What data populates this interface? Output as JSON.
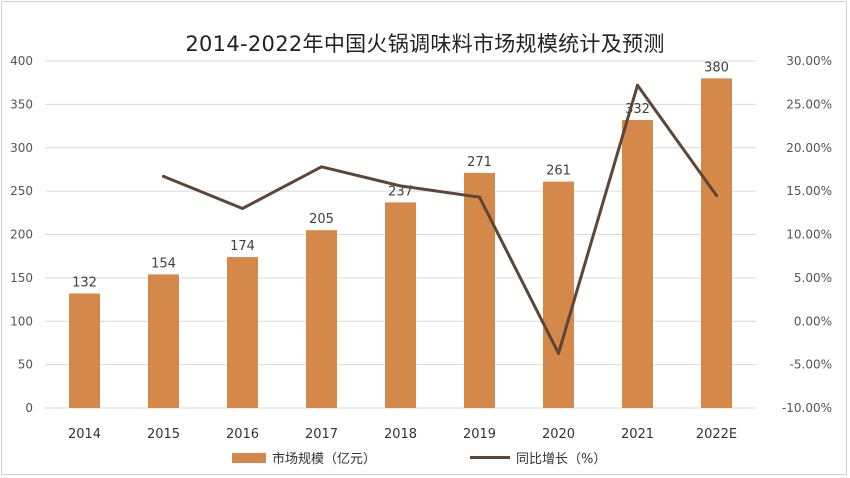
{
  "chart_data": {
    "type": "bar",
    "title": "2014-2022年中国火锅调味料市场规模统计及预测",
    "categories": [
      "2014",
      "2015",
      "2016",
      "2017",
      "2018",
      "2019",
      "2020",
      "2021",
      "2022E"
    ],
    "series": [
      {
        "name": "市场规模（亿元）",
        "type": "bar",
        "axis": "left",
        "color": "#D4894A",
        "values": [
          132,
          154,
          174,
          205,
          237,
          271,
          261,
          332,
          380
        ]
      },
      {
        "name": "同比增长（%）",
        "type": "line",
        "axis": "right",
        "color": "#5E4636",
        "values": [
          null,
          16.7,
          13.0,
          17.8,
          15.6,
          14.3,
          -3.7,
          27.2,
          14.5
        ]
      }
    ],
    "left_axis": {
      "ylim": [
        0,
        400
      ],
      "ticks": [
        "0",
        "50",
        "100",
        "150",
        "200",
        "250",
        "300",
        "350",
        "400"
      ]
    },
    "right_axis": {
      "ylim": [
        -10,
        30
      ],
      "ticks": [
        "-10.00%",
        "-5.00%",
        "0.00%",
        "5.00%",
        "10.00%",
        "15.00%",
        "20.00%",
        "25.00%",
        "30.00%"
      ]
    },
    "grid": true,
    "legend_position": "bottom"
  }
}
